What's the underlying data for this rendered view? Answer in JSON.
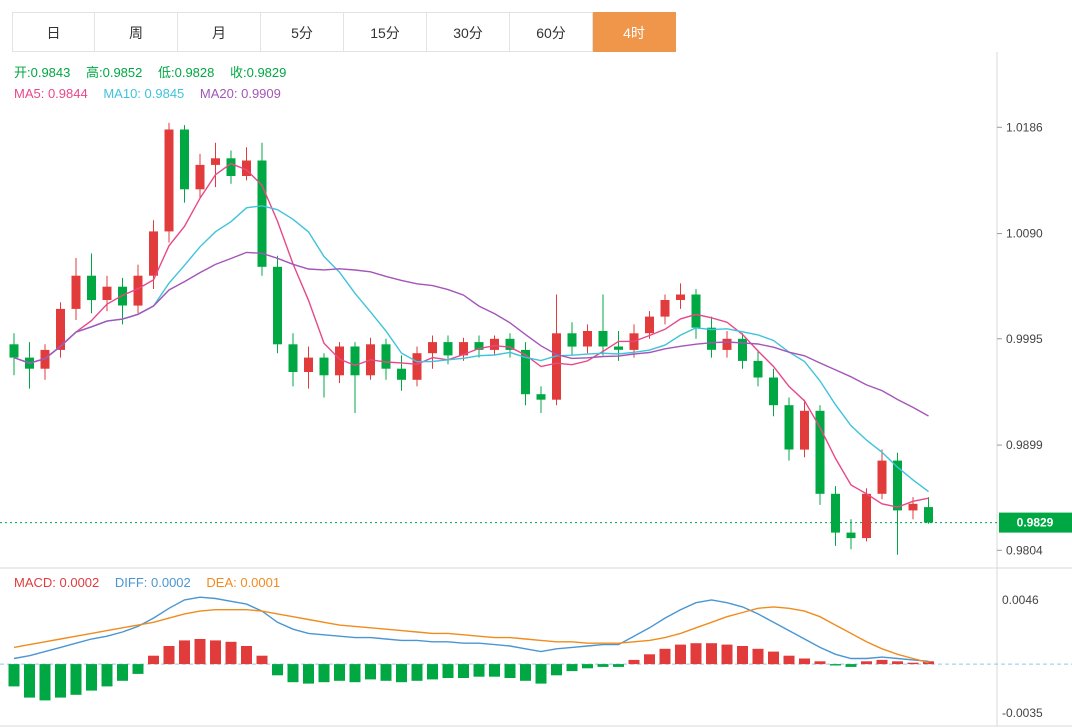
{
  "tabs": [
    {
      "label": "日",
      "active": false
    },
    {
      "label": "周",
      "active": false
    },
    {
      "label": "月",
      "active": false
    },
    {
      "label": "5分",
      "active": false
    },
    {
      "label": "15分",
      "active": false
    },
    {
      "label": "30分",
      "active": false
    },
    {
      "label": "60分",
      "active": false
    },
    {
      "label": "4时",
      "active": true
    }
  ],
  "price_panel": {
    "ohlc_legend": [
      "开:0.9843",
      "高:0.9852",
      "低:0.9828",
      "收:0.9829"
    ],
    "ma_legend": [
      "MA5: 0.9844",
      "MA10: 0.9845",
      "MA20: 0.9909"
    ],
    "axis_labels": [
      "1.0186",
      "1.0090",
      "0.9995",
      "0.9899",
      "0.9804"
    ],
    "current_price_badge": "0.9829"
  },
  "macd_panel": {
    "legend": [
      "MACD: 0.0002",
      "DIFF: 0.0002",
      "DEA: 0.0001"
    ],
    "axis_labels": [
      "0.0046",
      "-0.0035"
    ]
  },
  "colors": {
    "up": "#e23b3b",
    "down": "#00a843",
    "ma5": "#e8488a",
    "ma10": "#3fc3dc",
    "ma20": "#a455b8",
    "diff": "#4a96d2",
    "dea": "#f08c1e",
    "active_tab": "#f0964b",
    "badge": "#00a843",
    "zero_line": "#8fc9e8",
    "border": "#d9d9d9"
  },
  "chart_data": {
    "type": "candlestick",
    "title": "4时 K线 (4-hour candlestick with MA5/MA10/MA20 and MACD)",
    "x_count": 60,
    "price": {
      "y_range": [
        0.9788,
        1.0254
      ],
      "axis_ticks": [
        1.0186,
        1.009,
        0.9995,
        0.9899,
        0.9804
      ],
      "current_price": 0.9829,
      "ma_periods": [
        5,
        10,
        20
      ],
      "ohlc": [
        [
          0.999,
          1.0,
          0.9962,
          0.9978
        ],
        [
          0.9978,
          0.9992,
          0.995,
          0.9968
        ],
        [
          0.9968,
          0.999,
          0.9958,
          0.9985
        ],
        [
          0.9985,
          1.0028,
          0.9978,
          1.0022
        ],
        [
          1.0022,
          1.0068,
          1.0012,
          1.0052
        ],
        [
          1.0052,
          1.0072,
          1.0018,
          1.003
        ],
        [
          1.003,
          1.0052,
          1.002,
          1.0042
        ],
        [
          1.0042,
          1.005,
          1.0008,
          1.0025
        ],
        [
          1.0025,
          1.0062,
          1.0018,
          1.0052
        ],
        [
          1.0052,
          1.0102,
          1.004,
          1.0092
        ],
        [
          1.0092,
          1.019,
          1.0082,
          1.0184
        ],
        [
          1.0184,
          1.0188,
          1.0118,
          1.013
        ],
        [
          1.013,
          1.0162,
          1.0122,
          1.0152
        ],
        [
          1.0152,
          1.0172,
          1.0132,
          1.0158
        ],
        [
          1.0158,
          1.0165,
          1.0135,
          1.0142
        ],
        [
          1.0142,
          1.0168,
          1.0138,
          1.0156
        ],
        [
          1.0156,
          1.0172,
          1.0052,
          1.006
        ],
        [
          1.006,
          1.007,
          0.9982,
          0.999
        ],
        [
          0.999,
          1.0,
          0.9952,
          0.9965
        ],
        [
          0.9965,
          0.9988,
          0.995,
          0.9978
        ],
        [
          0.9978,
          0.9982,
          0.9942,
          0.9962
        ],
        [
          0.9962,
          0.9992,
          0.9955,
          0.9988
        ],
        [
          0.9988,
          0.9992,
          0.9928,
          0.9962
        ],
        [
          0.9962,
          0.9996,
          0.9958,
          0.999
        ],
        [
          0.999,
          0.9995,
          0.9958,
          0.9968
        ],
        [
          0.9968,
          0.998,
          0.9948,
          0.9958
        ],
        [
          0.9958,
          0.9988,
          0.9952,
          0.9982
        ],
        [
          0.9982,
          0.9998,
          0.9968,
          0.9992
        ],
        [
          0.9992,
          0.9998,
          0.9972,
          0.998
        ],
        [
          0.998,
          0.9996,
          0.9975,
          0.9992
        ],
        [
          0.9992,
          0.9998,
          0.9978,
          0.9985
        ],
        [
          0.9985,
          0.9998,
          0.998,
          0.9995
        ],
        [
          0.9995,
          1.0,
          0.9978,
          0.9985
        ],
        [
          0.9985,
          0.9992,
          0.9935,
          0.9945
        ],
        [
          0.9945,
          0.9952,
          0.9928,
          0.994
        ],
        [
          0.994,
          1.0035,
          0.9935,
          1.0
        ],
        [
          1.0,
          1.001,
          0.998,
          0.9988
        ],
        [
          0.9988,
          1.0008,
          0.9982,
          1.0002
        ],
        [
          1.0002,
          1.0035,
          0.998,
          0.9988
        ],
        [
          0.9988,
          1.0002,
          0.9975,
          0.9985
        ],
        [
          0.9985,
          1.0008,
          0.9978,
          1.0
        ],
        [
          1.0,
          1.002,
          0.9995,
          1.0015
        ],
        [
          1.0015,
          1.0035,
          1.0008,
          1.003
        ],
        [
          1.003,
          1.0045,
          1.0022,
          1.0035
        ],
        [
          1.0035,
          1.004,
          0.9995,
          1.0005
        ],
        [
          1.0005,
          1.0015,
          0.9978,
          0.9985
        ],
        [
          0.9985,
          1.0002,
          0.9978,
          0.9995
        ],
        [
          0.9995,
          1.0,
          0.9968,
          0.9975
        ],
        [
          0.9975,
          0.9985,
          0.9952,
          0.996
        ],
        [
          0.996,
          0.9968,
          0.9925,
          0.9935
        ],
        [
          0.9935,
          0.9942,
          0.9885,
          0.9895
        ],
        [
          0.9895,
          0.994,
          0.9888,
          0.993
        ],
        [
          0.993,
          0.9935,
          0.9845,
          0.9855
        ],
        [
          0.9855,
          0.9862,
          0.9808,
          0.982
        ],
        [
          0.982,
          0.9832,
          0.9805,
          0.9815
        ],
        [
          0.9815,
          0.986,
          0.9812,
          0.9855
        ],
        [
          0.9855,
          0.9895,
          0.985,
          0.9885
        ],
        [
          0.9885,
          0.9892,
          0.98,
          0.984
        ],
        [
          0.984,
          0.9852,
          0.9832,
          0.9846
        ],
        [
          0.9843,
          0.9852,
          0.9828,
          0.9829
        ]
      ]
    },
    "macd": {
      "y_range": [
        -0.00415,
        0.00689
      ],
      "axis_ticks": [
        0.0046,
        -0.0035
      ],
      "diff": [
        0.0004,
        0.0006,
        0.0009,
        0.0012,
        0.0015,
        0.0018,
        0.002,
        0.0023,
        0.0027,
        0.0033,
        0.004,
        0.0046,
        0.0048,
        0.0047,
        0.0045,
        0.0043,
        0.0038,
        0.003,
        0.0025,
        0.0022,
        0.0021,
        0.002,
        0.0019,
        0.0019,
        0.0018,
        0.0017,
        0.0017,
        0.0016,
        0.0016,
        0.0015,
        0.0015,
        0.0014,
        0.0013,
        0.0011,
        0.0009,
        0.0011,
        0.0012,
        0.0013,
        0.0014,
        0.0014,
        0.002,
        0.0026,
        0.0033,
        0.0039,
        0.0044,
        0.0046,
        0.0044,
        0.0041,
        0.0036,
        0.003,
        0.0024,
        0.0018,
        0.0012,
        0.0007,
        0.0004,
        0.0004,
        0.0005,
        0.0004,
        0.0003,
        0.0002
      ],
      "dea": [
        0.0012,
        0.0014,
        0.0016,
        0.0018,
        0.002,
        0.0022,
        0.0024,
        0.0026,
        0.0028,
        0.003,
        0.0033,
        0.0036,
        0.0038,
        0.0039,
        0.0039,
        0.0039,
        0.0038,
        0.0036,
        0.0034,
        0.0032,
        0.003,
        0.0028,
        0.0027,
        0.0026,
        0.0025,
        0.0024,
        0.0023,
        0.0022,
        0.0022,
        0.0021,
        0.002,
        0.0019,
        0.0019,
        0.0018,
        0.0017,
        0.0016,
        0.0016,
        0.0015,
        0.0015,
        0.0015,
        0.0016,
        0.0017,
        0.0019,
        0.0022,
        0.0026,
        0.003,
        0.0034,
        0.0037,
        0.004,
        0.0041,
        0.004,
        0.0038,
        0.0034,
        0.0028,
        0.0022,
        0.0016,
        0.0011,
        0.0007,
        0.0004,
        0.0001
      ],
      "histogram": [
        -0.0016,
        -0.0024,
        -0.0026,
        -0.0024,
        -0.0022,
        -0.0019,
        -0.0016,
        -0.0012,
        -0.0007,
        0.0006,
        0.0013,
        0.0017,
        0.0018,
        0.0017,
        0.0016,
        0.0013,
        0.0006,
        -0.0008,
        -0.0013,
        -0.0014,
        -0.0013,
        -0.0012,
        -0.0013,
        -0.0011,
        -0.0012,
        -0.0013,
        -0.0012,
        -0.0011,
        -0.001,
        -0.001,
        -0.0009,
        -0.0009,
        -0.001,
        -0.0012,
        -0.0014,
        -0.0008,
        -0.0005,
        -0.0003,
        -0.0002,
        -0.0002,
        0.0003,
        0.0007,
        0.0011,
        0.0014,
        0.0015,
        0.0015,
        0.0014,
        0.0013,
        0.0011,
        0.0009,
        0.0006,
        0.0004,
        0.0002,
        -0.0001,
        -0.0002,
        0.0002,
        0.0003,
        0.0002,
        0.0001,
        0.0002
      ]
    }
  }
}
